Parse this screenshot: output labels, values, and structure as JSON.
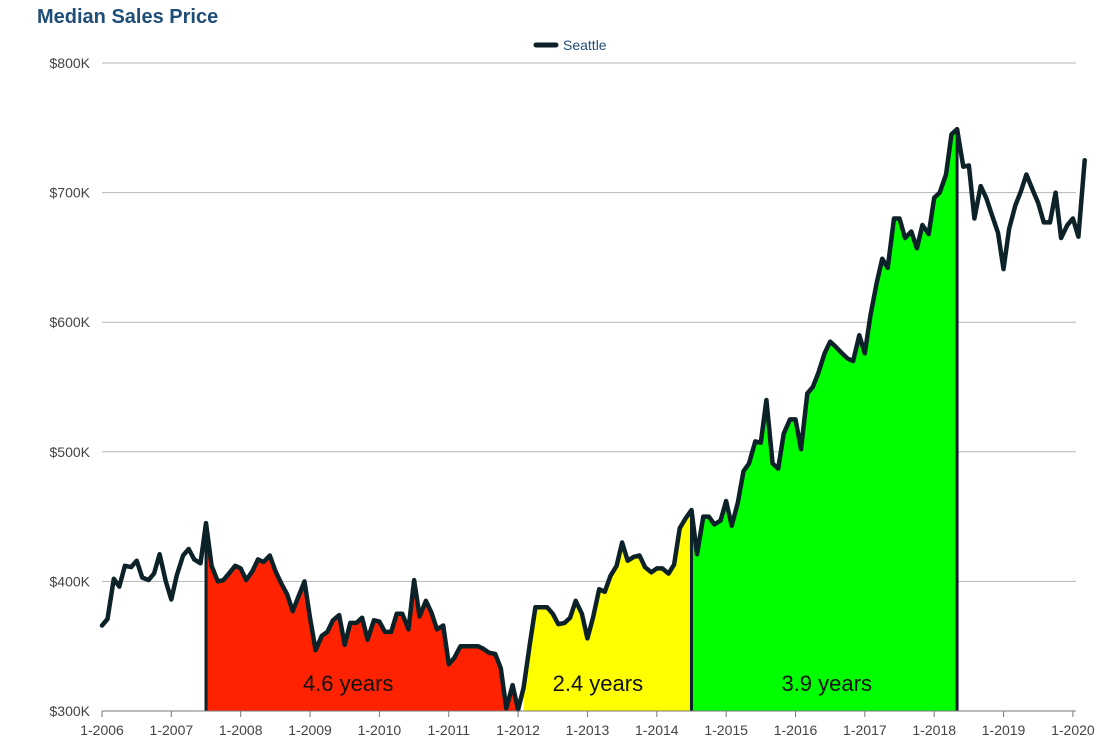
{
  "chart_data": {
    "type": "line",
    "title": "Median Sales Price",
    "xlabel": "",
    "ylabel": "",
    "ylim": [
      300000,
      800000
    ],
    "y_ticks": [
      {
        "value": 300000,
        "label": "$300K"
      },
      {
        "value": 400000,
        "label": "$400K"
      },
      {
        "value": 500000,
        "label": "$500K"
      },
      {
        "value": 600000,
        "label": "$600K"
      },
      {
        "value": 700000,
        "label": "$700K"
      },
      {
        "value": 800000,
        "label": "$800K"
      }
    ],
    "x_ticks": [
      {
        "value": 2006.0,
        "label": "1-2006"
      },
      {
        "value": 2007.0,
        "label": "1-2007"
      },
      {
        "value": 2008.0,
        "label": "1-2008"
      },
      {
        "value": 2009.0,
        "label": "1-2009"
      },
      {
        "value": 2010.0,
        "label": "1-2010"
      },
      {
        "value": 2011.0,
        "label": "1-2011"
      },
      {
        "value": 2012.0,
        "label": "1-2012"
      },
      {
        "value": 2013.0,
        "label": "1-2013"
      },
      {
        "value": 2014.0,
        "label": "1-2014"
      },
      {
        "value": 2015.0,
        "label": "1-2015"
      },
      {
        "value": 2016.0,
        "label": "1-2016"
      },
      {
        "value": 2017.0,
        "label": "1-2017"
      },
      {
        "value": 2018.0,
        "label": "1-2018"
      },
      {
        "value": 2019.0,
        "label": "1-2019"
      },
      {
        "value": 2020.0,
        "label": "1-2020"
      }
    ],
    "legend": {
      "position": "top-center",
      "entries": [
        "Seattle"
      ]
    },
    "series": [
      {
        "name": "Seattle",
        "color": "#0d2228",
        "points": [
          [
            2006.0,
            366000
          ],
          [
            2006.08,
            371000
          ],
          [
            2006.17,
            402000
          ],
          [
            2006.25,
            396000
          ],
          [
            2006.33,
            412000
          ],
          [
            2006.42,
            411000
          ],
          [
            2006.5,
            416000
          ],
          [
            2006.58,
            403000
          ],
          [
            2006.67,
            401000
          ],
          [
            2006.75,
            406000
          ],
          [
            2006.83,
            421000
          ],
          [
            2006.92,
            400000
          ],
          [
            2007.0,
            386000
          ],
          [
            2007.08,
            405000
          ],
          [
            2007.17,
            420000
          ],
          [
            2007.25,
            425000
          ],
          [
            2007.33,
            417000
          ],
          [
            2007.42,
            414000
          ],
          [
            2007.5,
            445000
          ],
          [
            2007.58,
            412000
          ],
          [
            2007.67,
            400000
          ],
          [
            2007.75,
            401000
          ],
          [
            2007.83,
            406000
          ],
          [
            2007.92,
            412000
          ],
          [
            2008.0,
            410000
          ],
          [
            2008.08,
            401000
          ],
          [
            2008.17,
            408000
          ],
          [
            2008.25,
            417000
          ],
          [
            2008.33,
            415000
          ],
          [
            2008.42,
            420000
          ],
          [
            2008.5,
            408000
          ],
          [
            2008.58,
            399000
          ],
          [
            2008.67,
            390000
          ],
          [
            2008.75,
            377000
          ],
          [
            2008.83,
            388000
          ],
          [
            2008.92,
            400000
          ],
          [
            2009.0,
            372000
          ],
          [
            2009.08,
            347000
          ],
          [
            2009.17,
            358000
          ],
          [
            2009.25,
            361000
          ],
          [
            2009.33,
            370000
          ],
          [
            2009.42,
            374000
          ],
          [
            2009.5,
            351000
          ],
          [
            2009.58,
            368000
          ],
          [
            2009.67,
            368000
          ],
          [
            2009.75,
            372000
          ],
          [
            2009.83,
            355000
          ],
          [
            2009.92,
            370000
          ],
          [
            2010.0,
            369000
          ],
          [
            2010.08,
            361000
          ],
          [
            2010.17,
            361000
          ],
          [
            2010.25,
            375000
          ],
          [
            2010.33,
            375000
          ],
          [
            2010.42,
            363000
          ],
          [
            2010.5,
            401000
          ],
          [
            2010.58,
            373000
          ],
          [
            2010.67,
            385000
          ],
          [
            2010.75,
            376000
          ],
          [
            2010.83,
            363000
          ],
          [
            2010.92,
            366000
          ],
          [
            2011.0,
            336000
          ],
          [
            2011.08,
            341000
          ],
          [
            2011.17,
            350000
          ],
          [
            2011.25,
            350000
          ],
          [
            2011.33,
            350000
          ],
          [
            2011.42,
            350000
          ],
          [
            2011.5,
            348000
          ],
          [
            2011.58,
            345000
          ],
          [
            2011.67,
            344000
          ],
          [
            2011.75,
            333000
          ],
          [
            2011.83,
            302000
          ],
          [
            2011.92,
            320000
          ],
          [
            2012.0,
            301000
          ],
          [
            2012.08,
            318000
          ],
          [
            2012.17,
            352000
          ],
          [
            2012.25,
            380000
          ],
          [
            2012.33,
            380000
          ],
          [
            2012.42,
            380000
          ],
          [
            2012.5,
            375000
          ],
          [
            2012.58,
            367000
          ],
          [
            2012.67,
            368000
          ],
          [
            2012.75,
            372000
          ],
          [
            2012.83,
            385000
          ],
          [
            2012.92,
            375000
          ],
          [
            2013.0,
            356000
          ],
          [
            2013.08,
            372000
          ],
          [
            2013.17,
            394000
          ],
          [
            2013.25,
            392000
          ],
          [
            2013.33,
            404000
          ],
          [
            2013.42,
            412000
          ],
          [
            2013.5,
            430000
          ],
          [
            2013.58,
            416000
          ],
          [
            2013.67,
            419000
          ],
          [
            2013.75,
            420000
          ],
          [
            2013.83,
            411000
          ],
          [
            2013.92,
            407000
          ],
          [
            2014.0,
            410000
          ],
          [
            2014.08,
            410000
          ],
          [
            2014.17,
            406000
          ],
          [
            2014.25,
            413000
          ],
          [
            2014.33,
            441000
          ],
          [
            2014.42,
            449000
          ],
          [
            2014.5,
            455000
          ],
          [
            2014.58,
            421000
          ],
          [
            2014.67,
            450000
          ],
          [
            2014.75,
            450000
          ],
          [
            2014.83,
            444000
          ],
          [
            2014.92,
            447000
          ],
          [
            2015.0,
            462000
          ],
          [
            2015.08,
            443000
          ],
          [
            2015.17,
            461000
          ],
          [
            2015.25,
            485000
          ],
          [
            2015.33,
            491000
          ],
          [
            2015.42,
            508000
          ],
          [
            2015.5,
            507000
          ],
          [
            2015.58,
            540000
          ],
          [
            2015.67,
            491000
          ],
          [
            2015.75,
            487000
          ],
          [
            2015.83,
            514000
          ],
          [
            2015.92,
            525000
          ],
          [
            2016.0,
            525000
          ],
          [
            2016.08,
            502000
          ],
          [
            2016.17,
            545000
          ],
          [
            2016.25,
            550000
          ],
          [
            2016.33,
            561000
          ],
          [
            2016.42,
            576000
          ],
          [
            2016.5,
            585000
          ],
          [
            2016.58,
            581000
          ],
          [
            2016.67,
            576000
          ],
          [
            2016.75,
            572000
          ],
          [
            2016.83,
            570000
          ],
          [
            2016.92,
            590000
          ],
          [
            2017.0,
            576000
          ],
          [
            2017.08,
            605000
          ],
          [
            2017.17,
            630000
          ],
          [
            2017.25,
            649000
          ],
          [
            2017.33,
            642000
          ],
          [
            2017.42,
            680000
          ],
          [
            2017.5,
            680000
          ],
          [
            2017.58,
            665000
          ],
          [
            2017.67,
            670000
          ],
          [
            2017.75,
            657000
          ],
          [
            2017.83,
            675000
          ],
          [
            2017.92,
            668000
          ],
          [
            2018.0,
            696000
          ],
          [
            2018.08,
            700000
          ],
          [
            2018.17,
            714000
          ],
          [
            2018.25,
            745000
          ],
          [
            2018.33,
            749000
          ],
          [
            2018.42,
            720000
          ],
          [
            2018.5,
            721000
          ],
          [
            2018.58,
            680000
          ],
          [
            2018.67,
            705000
          ],
          [
            2018.75,
            696000
          ],
          [
            2018.83,
            683000
          ],
          [
            2018.92,
            669000
          ],
          [
            2019.0,
            641000
          ],
          [
            2019.08,
            672000
          ],
          [
            2019.17,
            690000
          ],
          [
            2019.25,
            701000
          ],
          [
            2019.33,
            714000
          ],
          [
            2019.42,
            702000
          ],
          [
            2019.5,
            692000
          ],
          [
            2019.58,
            677000
          ],
          [
            2019.67,
            677000
          ],
          [
            2019.75,
            700000
          ],
          [
            2019.83,
            665000
          ],
          [
            2019.92,
            675000
          ],
          [
            2020.0,
            680000
          ],
          [
            2020.08,
            666000
          ],
          [
            2020.17,
            725000
          ]
        ]
      }
    ],
    "periods": [
      {
        "label": "4.6 years",
        "start": 2007.5,
        "end": 2012.0,
        "label_x": 2009.55,
        "color": "#ff2200"
      },
      {
        "label": "2.4 years",
        "start": 2012.08,
        "end": 2014.5,
        "label_x": 2013.15,
        "color": "#ffff00"
      },
      {
        "label": "3.9 years",
        "start": 2014.5,
        "end": 2018.33,
        "label_x": 2016.45,
        "color": "#00ff00"
      }
    ],
    "period_markers": [
      2007.5,
      2014.5,
      2018.33
    ],
    "grid": true
  }
}
